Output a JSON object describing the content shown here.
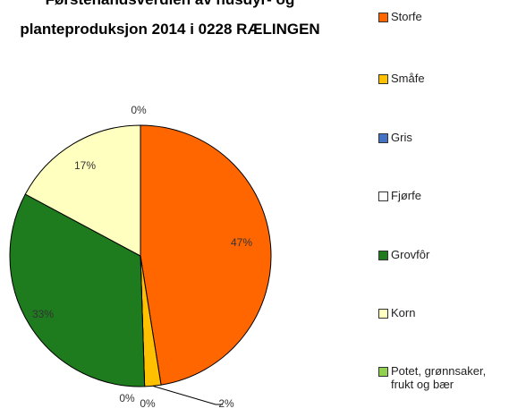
{
  "chart_data": {
    "type": "pie",
    "title": [
      "Førstehåndsverdien av husdyr- og",
      "planteproduksjon 2014 i 0228 RÆLINGEN"
    ],
    "categories": [
      "Storfe",
      "Småfe",
      "Gris",
      "Fjørfe",
      "Grovfôr",
      "Korn",
      "Potet, grønnsaker, frukt og bær"
    ],
    "values": [
      47,
      2,
      0,
      0,
      33,
      17,
      0
    ],
    "value_labels": [
      "47%",
      "2%",
      "0%",
      "0%",
      "33%",
      "17%",
      "0%"
    ],
    "colors": [
      "#ff6600",
      "#ffc000",
      "#4472c4",
      "#ffffff",
      "#1e7b1e",
      "#ffffc0",
      "#92d050"
    ]
  }
}
